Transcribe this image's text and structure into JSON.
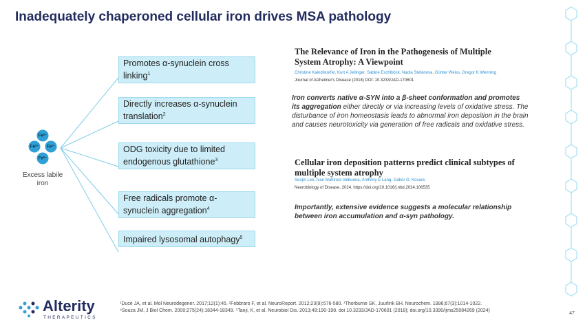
{
  "header": {
    "title": "Inadequately chaperoned cellular iron drives MSA pathology"
  },
  "diagram": {
    "iron_ions": [
      "Fe²⁺",
      "Fe²⁺",
      "Fe²⁺",
      "Fe²⁺"
    ],
    "source_label": "Excess labile iron",
    "effects": [
      {
        "text": "Promotes α-synuclein cross linking",
        "ref": "1"
      },
      {
        "text": "Directly increases α-synuclein translation",
        "ref": "2"
      },
      {
        "text": "ODG toxicity due to limited endogenous glutathione",
        "ref": "3"
      },
      {
        "text": "Free radicals promote α-synuclein aggregation",
        "ref": "4"
      },
      {
        "text": "Impaired lysosomal autophagy",
        "ref": "5"
      }
    ]
  },
  "papers": [
    {
      "title": "The Relevance of Iron in the Pathogenesis of Multiple System Atrophy: A Viewpoint",
      "authors": "Christine Kaindlstorfer, Kurt A Jellinger, Sabine Eschlböck, Nadia Stefanova, Günter Weiss, Gregor K Wenning",
      "journal": "Journal of Alzheimer's Disease (2018) DOI: 10.3233/JAD-170601",
      "summary_bold": "Iron converts native α-SYN into a β-sheet conformation and promotes its aggregation",
      "summary": "either directly or via increasing levels of oxidative stress. The disturbance of iron homeostasis leads to abnormal iron deposition in the brain and causes neurotoxicity via generation of free radicals and oxidative stress."
    },
    {
      "title": "Cellular iron deposition patterns predict clinical subtypes of multiple system atrophy",
      "authors": "Seojin Lee, Ivan Martinez-Valbuena, Anthony E Lang, Gabor G. Kovacs",
      "journal": "Neurobiology of Disease. 2024. https://doi.org/10.1016/j.nbd.2024.106535",
      "summary_bold": "Importantly, extensive evidence suggests a molecular relationship between iron accumulation and α-syn pathology."
    }
  ],
  "footer": {
    "logo": "Alterity",
    "logo_sub": "THERAPEUTICS",
    "references": "¹Duce JA, et al. Mol Neurodegener. 2017;12(1):45. ²Febbraro F, et al. NeuroReport. 2012;23(9):576-580. ³Thorburne SK, Juurlink BH. Neurochem. 1996;67(3):1014-1022. ⁴Souza JM, J Biol Chem. 2000;275(24):18344-18349. ⁵Tanji, K, et al. Neurobiol Dis. 2013;49:190-198. doi 10.3233/JAD-170601 (2018); doi.org/10.3390/ijms25084269 (2024)",
    "page": "47"
  }
}
